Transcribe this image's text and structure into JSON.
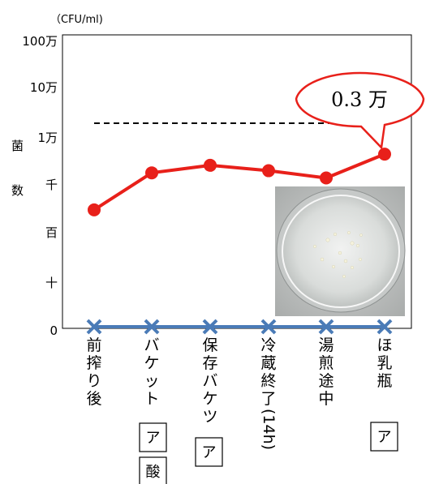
{
  "chart_data": {
    "type": "line",
    "unit_label": "（CFU/ml)",
    "ylabel": "菌数",
    "y_ticks": [
      "0",
      "十",
      "百",
      "千",
      "1万",
      "10万",
      "100万"
    ],
    "y_scale": "log",
    "categories": [
      "前搾り後",
      "バケット",
      "保存バケツ",
      "冷蔵終了(14h)",
      "湯煎途中",
      "ほ乳瓶"
    ],
    "series": [
      {
        "values": [
          300,
          1800,
          2600,
          2000,
          1400,
          4500
        ],
        "color": "#e8201a"
      },
      {
        "values": [
          0,
          0,
          0,
          0,
          0,
          0
        ],
        "color": "#4a7bb7"
      }
    ],
    "reference_line": {
      "value": 30000,
      "style": "dashed",
      "color": "#000000"
    },
    "callout": {
      "text": "0.3 万",
      "border_color": "#e8201a"
    },
    "tags": [
      {
        "category_index": 1,
        "labels": [
          "ア",
          "酸"
        ]
      },
      {
        "category_index": 2,
        "labels": [
          "ア"
        ]
      },
      {
        "category_index": 5,
        "labels": [
          "ア"
        ]
      }
    ],
    "inset_photo": "petri-dish-photo",
    "grid": false
  }
}
